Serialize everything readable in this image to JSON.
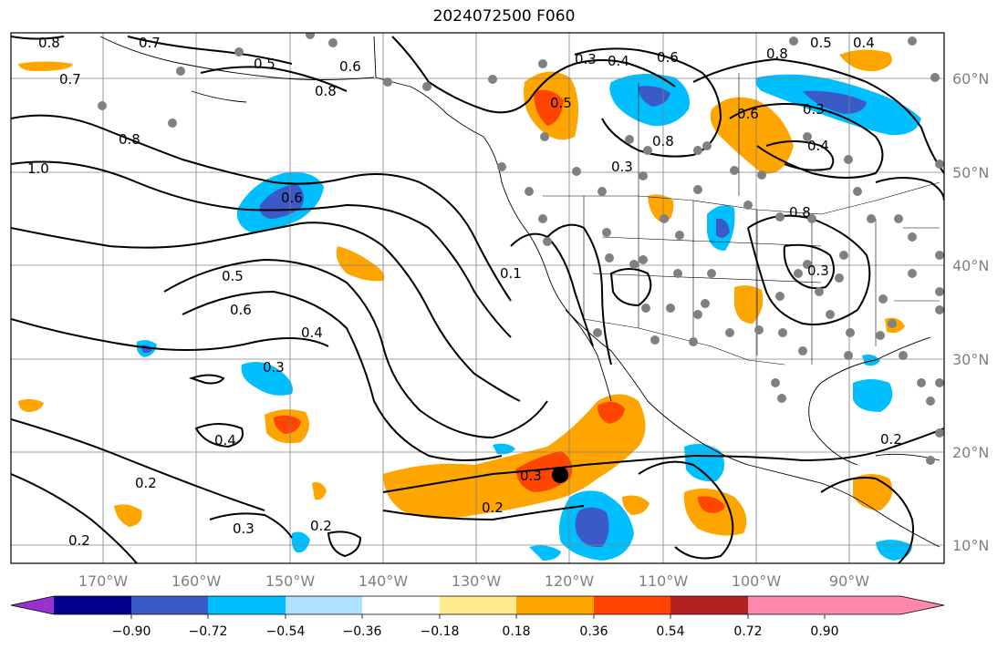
{
  "title": "2024072500 F060",
  "lon_labels": [
    "170°W",
    "160°W",
    "150°W",
    "140°W",
    "130°W",
    "120°W",
    "110°W",
    "100°W",
    "90°W"
  ],
  "lat_labels": [
    "60°N",
    "50°N",
    "40°N",
    "30°N",
    "20°N",
    "10°N"
  ],
  "colorbar": {
    "ticks": [
      "−0.90",
      "−0.72",
      "−0.54",
      "−0.36",
      "−0.18",
      "0.18",
      "0.36",
      "0.54",
      "0.72",
      "0.90"
    ],
    "colors": [
      "#9932cc",
      "#00008b",
      "#3a5bc7",
      "#00bfff",
      "#b0e0ff",
      "#ffffff",
      "#ffeb8c",
      "#ffa500",
      "#ff4500",
      "#b22222",
      "#ff88aa"
    ]
  },
  "contour_labels": [
    {
      "text": "0.8"
    },
    {
      "text": "0.7"
    },
    {
      "text": "0.5"
    },
    {
      "text": "0.6"
    },
    {
      "text": "0.7"
    },
    {
      "text": "0.8"
    },
    {
      "text": "0.8"
    },
    {
      "text": "1.0"
    },
    {
      "text": "0.6"
    },
    {
      "text": "0.5"
    },
    {
      "text": "0.6"
    },
    {
      "text": "0.4"
    },
    {
      "text": "0.3"
    },
    {
      "text": "0.4"
    },
    {
      "text": "0.2"
    },
    {
      "text": "0.3"
    },
    {
      "text": "0.2"
    },
    {
      "text": "0.2"
    },
    {
      "text": "0.5"
    },
    {
      "text": "0.3"
    },
    {
      "text": "0.6"
    },
    {
      "text": "0.8"
    },
    {
      "text": "0.5"
    },
    {
      "text": "0.4"
    },
    {
      "text": "0.6"
    },
    {
      "text": "0.3"
    },
    {
      "text": "0.4"
    },
    {
      "text": "0.8"
    },
    {
      "text": "0.3"
    },
    {
      "text": "0.2"
    },
    {
      "text": "0.3"
    },
    {
      "text": "0.2"
    },
    {
      "text": "0.8"
    },
    {
      "text": "0.4"
    },
    {
      "text": "0.3"
    },
    {
      "text": "0.1"
    }
  ]
}
